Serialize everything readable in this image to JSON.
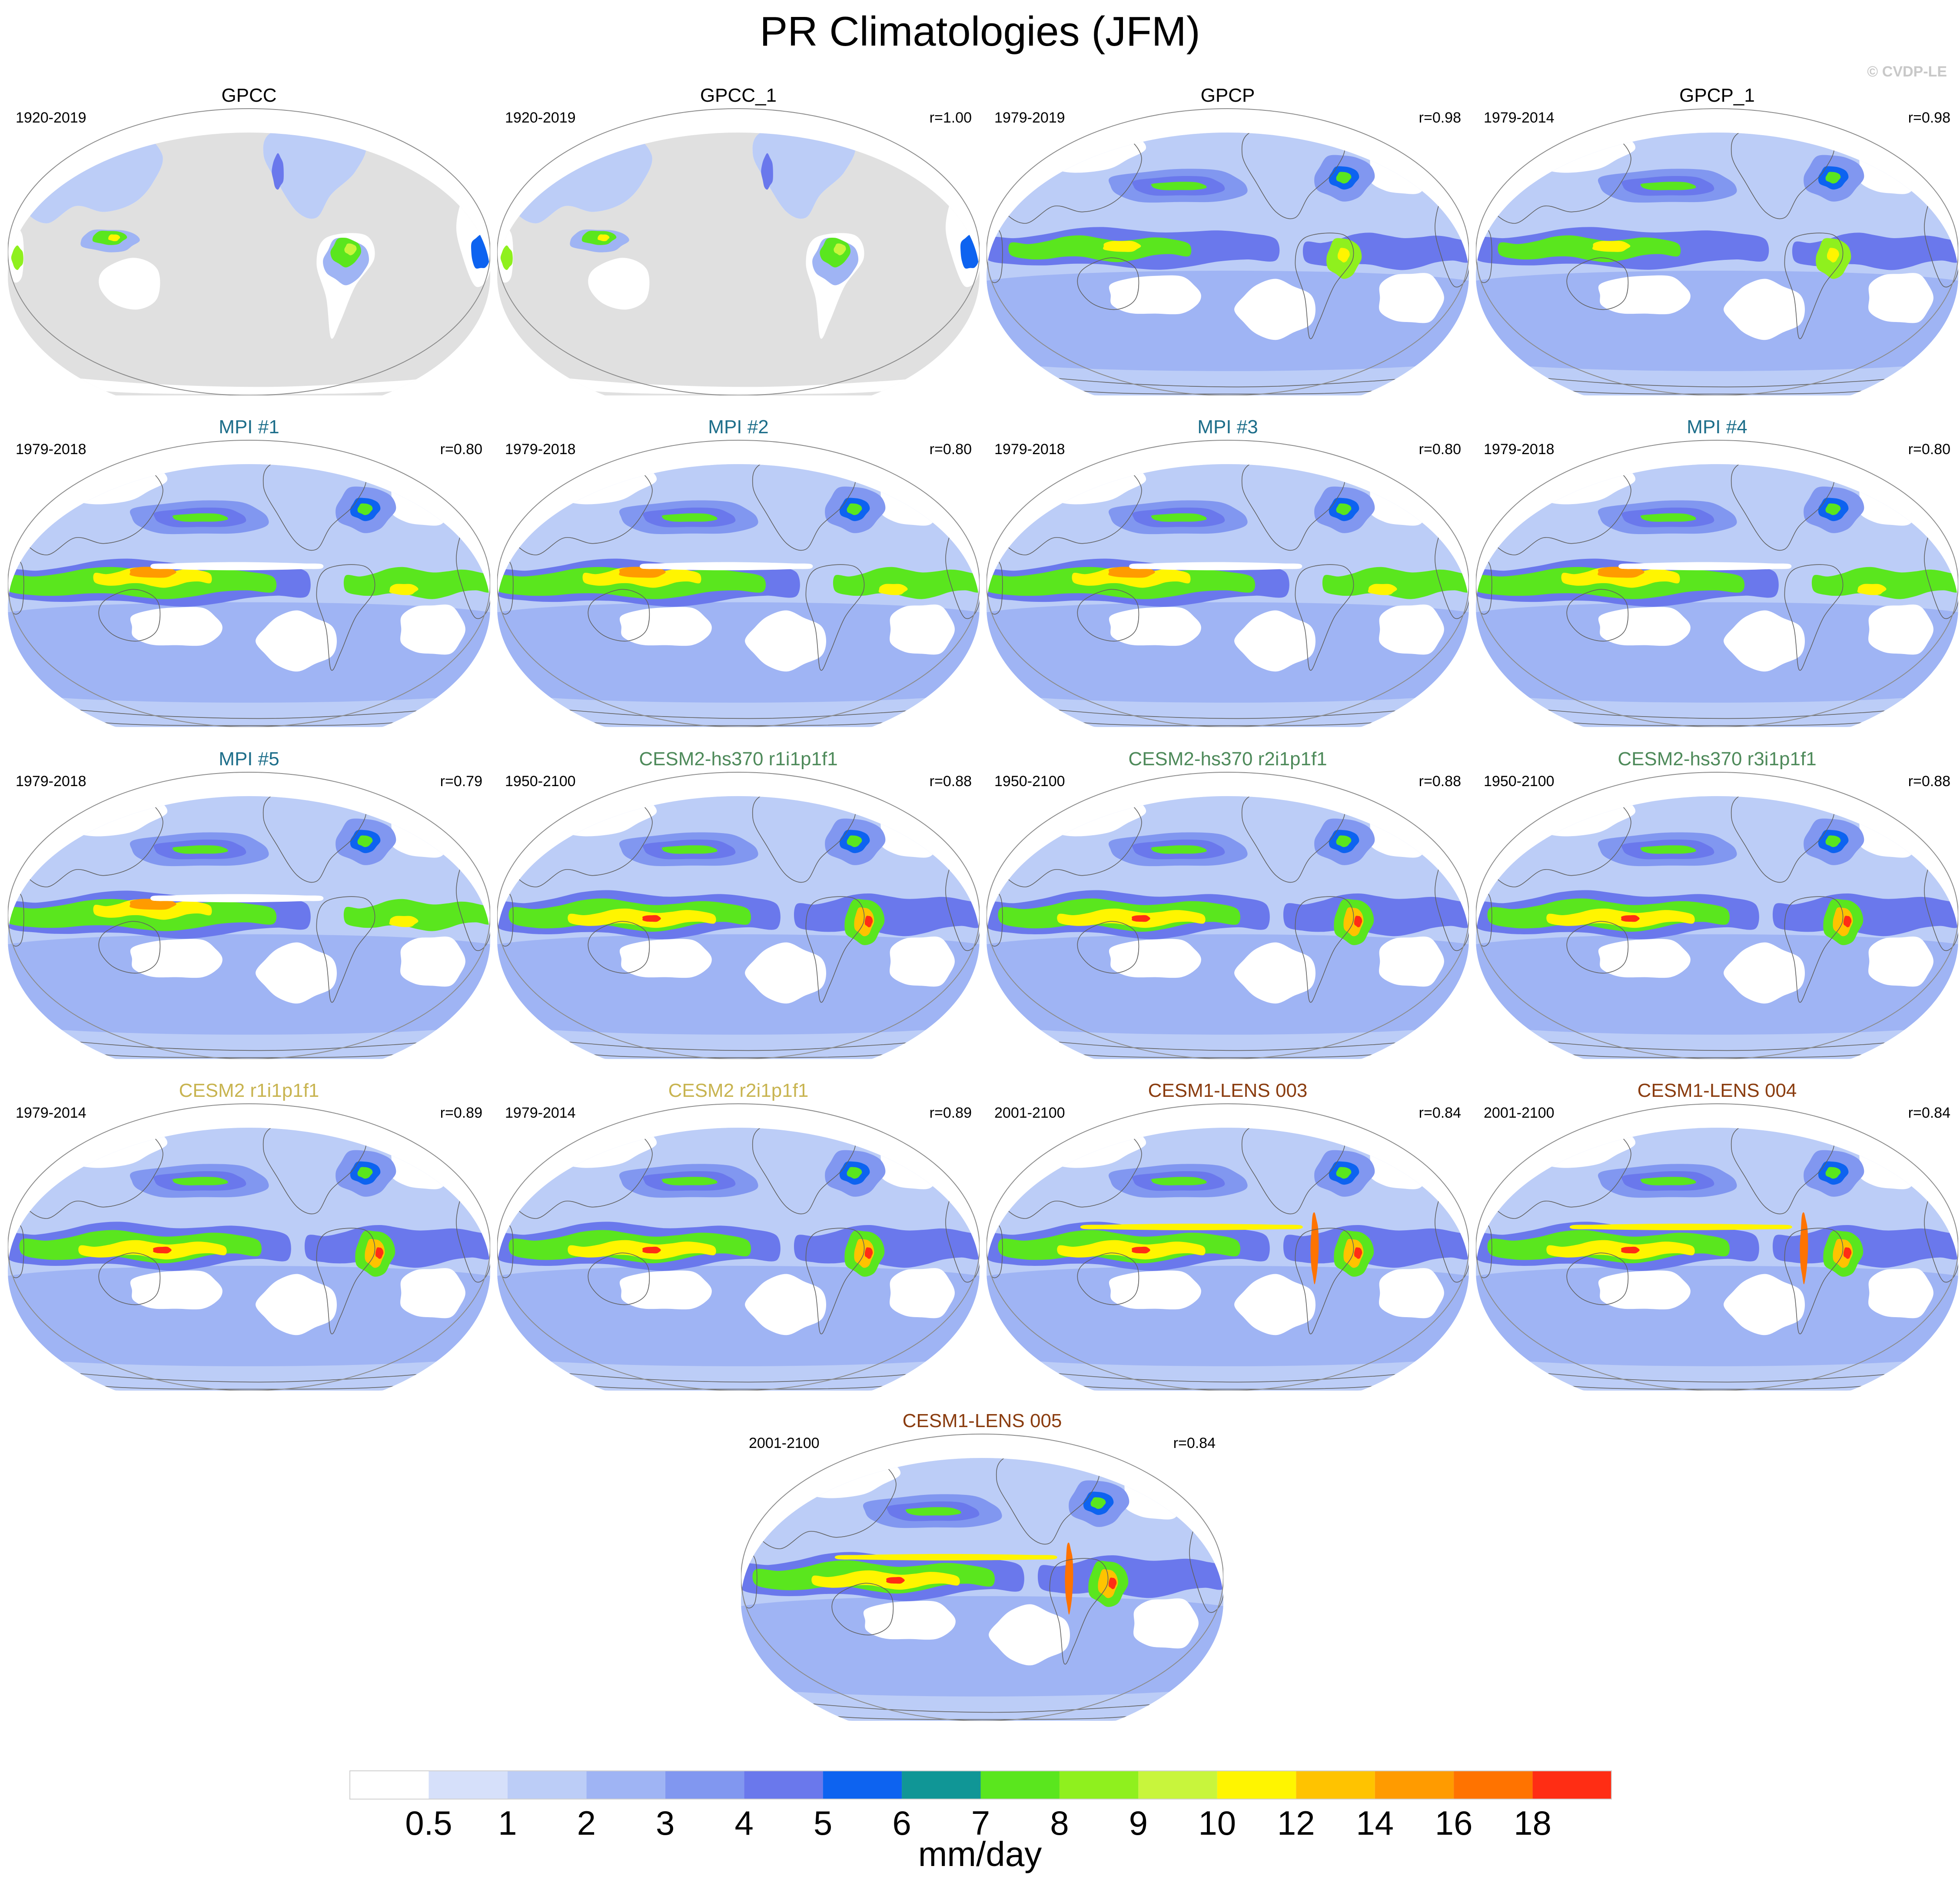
{
  "title": "PR Climatologies (JFM)",
  "copyright": "© CVDP-LE",
  "colors": {
    "title_obs": "#000000",
    "title_mpi": "#1d6e8a",
    "title_cesm2_hs370": "#4e8a5a",
    "title_cesm2": "#c8b450",
    "title_cesm1_lens": "#8a3c0f",
    "land_mask": "#e0e0e0",
    "coastline": "#606060"
  },
  "panels": [
    {
      "title": "GPCC",
      "years": "1920-2019",
      "corr": "",
      "group": "obs",
      "field": "gpcc"
    },
    {
      "title": "GPCC_1",
      "years": "1920-2019",
      "corr": "r=1.00",
      "group": "obs",
      "field": "gpcc"
    },
    {
      "title": "GPCP",
      "years": "1979-2019",
      "corr": "r=0.98",
      "group": "obs",
      "field": "gpcp"
    },
    {
      "title": "GPCP_1",
      "years": "1979-2014",
      "corr": "r=0.98",
      "group": "obs",
      "field": "gpcp"
    },
    {
      "title": "MPI #1",
      "years": "1979-2018",
      "corr": "r=0.80",
      "group": "mpi",
      "field": "mpi"
    },
    {
      "title": "MPI #2",
      "years": "1979-2018",
      "corr": "r=0.80",
      "group": "mpi",
      "field": "mpi"
    },
    {
      "title": "MPI #3",
      "years": "1979-2018",
      "corr": "r=0.80",
      "group": "mpi",
      "field": "mpi"
    },
    {
      "title": "MPI #4",
      "years": "1979-2018",
      "corr": "r=0.80",
      "group": "mpi",
      "field": "mpi"
    },
    {
      "title": "MPI #5",
      "years": "1979-2018",
      "corr": "r=0.79",
      "group": "mpi",
      "field": "mpi"
    },
    {
      "title": "CESM2-hs370 r1i1p1f1",
      "years": "1950-2100",
      "corr": "r=0.88",
      "group": "cesm2_hs370",
      "field": "cesm2"
    },
    {
      "title": "CESM2-hs370 r2i1p1f1",
      "years": "1950-2100",
      "corr": "r=0.88",
      "group": "cesm2_hs370",
      "field": "cesm2"
    },
    {
      "title": "CESM2-hs370 r3i1p1f1",
      "years": "1950-2100",
      "corr": "r=0.88",
      "group": "cesm2_hs370",
      "field": "cesm2"
    },
    {
      "title": "CESM2 r1i1p1f1",
      "years": "1979-2014",
      "corr": "r=0.89",
      "group": "cesm2",
      "field": "cesm2"
    },
    {
      "title": "CESM2 r2i1p1f1",
      "years": "1979-2014",
      "corr": "r=0.89",
      "group": "cesm2",
      "field": "cesm2"
    },
    {
      "title": "CESM1-LENS 003",
      "years": "2001-2100",
      "corr": "r=0.84",
      "group": "cesm1_lens",
      "field": "cesm1"
    },
    {
      "title": "CESM1-LENS 004",
      "years": "2001-2100",
      "corr": "r=0.84",
      "group": "cesm1_lens",
      "field": "cesm1"
    },
    {
      "title": "CESM1-LENS 005",
      "years": "2001-2100",
      "corr": "r=0.84",
      "group": "cesm1_lens",
      "field": "cesm1"
    }
  ],
  "colorbar": {
    "unit": "mm/day",
    "labels": [
      "0.5",
      "1",
      "2",
      "3",
      "4",
      "5",
      "6",
      "7",
      "8",
      "9",
      "10",
      "12",
      "14",
      "16",
      "18"
    ],
    "colors": [
      "#ffffff",
      "#d6e0fa",
      "#bccdf7",
      "#9fb4f4",
      "#8197f0",
      "#6a78ec",
      "#0d63f0",
      "#109696",
      "#5ae61e",
      "#8ff01e",
      "#c8f53c",
      "#fff500",
      "#ffc300",
      "#ff9b00",
      "#ff7300",
      "#ff2d14"
    ]
  }
}
